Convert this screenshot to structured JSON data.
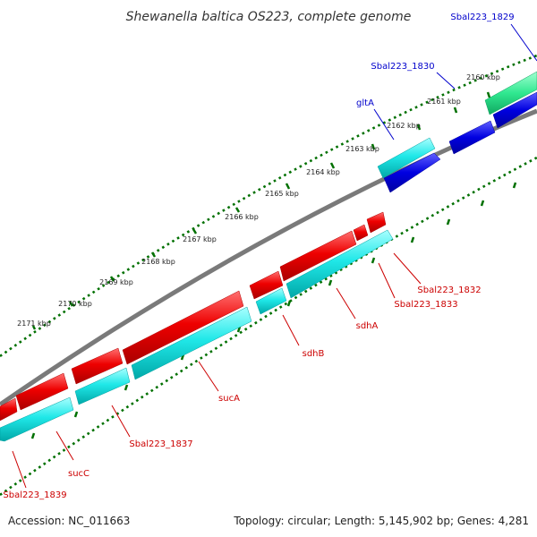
{
  "title": "Shewanella baltica OS223, complete genome",
  "accession": "Accession: NC_011663",
  "topology": "Topology: circular; Length: 5,145,902 bp; Genes: 4,281",
  "colors": {
    "backbone": "#808080",
    "forward_genes": "#e00000",
    "reverse_genes": "#00e0e0",
    "blue_genes": "#0000e0",
    "green_genes": "#30e890",
    "ticks": "#007000",
    "label_forward": "#cc0000",
    "label_reverse": "#0000cc"
  },
  "ticks": [
    {
      "label": "2160 kbp"
    },
    {
      "label": "2161 kbp"
    },
    {
      "label": "2162 kbp"
    },
    {
      "label": "2163 kbp"
    },
    {
      "label": "2164 kbp"
    },
    {
      "label": "2165 kbp"
    },
    {
      "label": "2166 kbp"
    },
    {
      "label": "2167 kbp"
    },
    {
      "label": "2168 kbp"
    },
    {
      "label": "2169 kbp"
    },
    {
      "label": "2170 kbp"
    },
    {
      "label": "2171 kbp"
    }
  ],
  "gene_labels": [
    {
      "text": "Sbal223_1829",
      "color": "blue"
    },
    {
      "text": "Sbal223_1830",
      "color": "blue"
    },
    {
      "text": "gltA",
      "color": "blue"
    },
    {
      "text": "Sbal223_1832",
      "color": "red"
    },
    {
      "text": "Sbal223_1833",
      "color": "red"
    },
    {
      "text": "sdhA",
      "color": "red"
    },
    {
      "text": "sdhB",
      "color": "red"
    },
    {
      "text": "sucA",
      "color": "red"
    },
    {
      "text": "Sbal223_1837",
      "color": "red"
    },
    {
      "text": "sucC",
      "color": "red"
    },
    {
      "text": "Sbal223_1839",
      "color": "red"
    }
  ]
}
